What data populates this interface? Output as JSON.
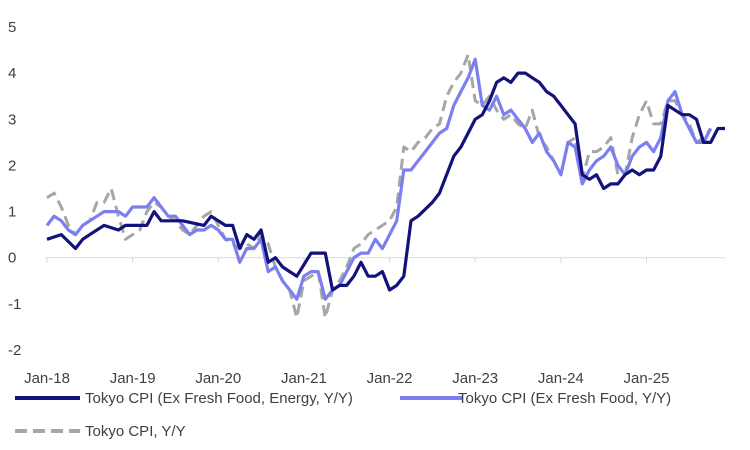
{
  "chart_data": {
    "type": "line",
    "x_ticks": [
      "Jan-18",
      "Jan-19",
      "Jan-20",
      "Jan-21",
      "Jan-22",
      "Jan-23",
      "Jan-24",
      "Jan-25"
    ],
    "y_ticks": [
      5,
      4,
      3,
      2,
      1,
      0,
      -1,
      -2
    ],
    "ylim": [
      -2,
      5
    ],
    "xlim": [
      "2018-01",
      "2025-12"
    ],
    "grid": false,
    "legend_position": "bottom",
    "series": [
      {
        "name": "Tokyo CPI (Ex Fresh Food, Energy, Y/Y)",
        "color": "#12127a",
        "dash": "solid",
        "x": [
          "2018-01",
          "2018-03",
          "2018-05",
          "2018-06",
          "2018-07",
          "2018-09",
          "2018-11",
          "2018-12",
          "2019-03",
          "2019-04",
          "2019-05",
          "2019-06",
          "2019-08",
          "2019-11",
          "2019-12",
          "2020-02",
          "2020-03",
          "2020-04",
          "2020-05",
          "2020-06",
          "2020-07",
          "2020-08",
          "2020-09",
          "2020-10",
          "2020-11",
          "2020-12",
          "2021-02",
          "2021-03",
          "2021-04",
          "2021-05",
          "2021-06",
          "2021-07",
          "2021-08",
          "2021-09",
          "2021-10",
          "2021-11",
          "2021-12",
          "2022-01",
          "2022-02",
          "2022-03",
          "2022-04",
          "2022-05",
          "2022-07",
          "2022-08",
          "2022-10",
          "2022-11",
          "2022-12",
          "2023-01",
          "2023-02",
          "2023-03",
          "2023-04",
          "2023-05",
          "2023-06",
          "2023-07",
          "2023-08",
          "2023-09",
          "2023-10",
          "2023-11",
          "2023-12",
          "2024-01",
          "2024-02",
          "2024-03",
          "2024-04",
          "2024-05",
          "2024-06",
          "2024-07",
          "2024-08",
          "2024-09",
          "2024-10",
          "2024-11",
          "2024-12",
          "2025-01",
          "2025-02",
          "2025-03",
          "2025-04",
          "2025-05",
          "2025-06",
          "2025-07",
          "2025-08",
          "2025-09",
          "2025-10",
          "2025-11",
          "2025-12"
        ],
        "y": [
          0.4,
          0.5,
          0.2,
          0.4,
          0.5,
          0.7,
          0.6,
          0.7,
          0.7,
          1.0,
          0.8,
          0.8,
          0.8,
          0.7,
          0.9,
          0.7,
          0.7,
          0.2,
          0.5,
          0.4,
          0.6,
          -0.1,
          0.0,
          -0.2,
          -0.3,
          -0.4,
          0.1,
          0.1,
          0.1,
          -0.7,
          -0.6,
          -0.6,
          -0.4,
          -0.1,
          -0.4,
          -0.4,
          -0.3,
          -0.7,
          -0.6,
          -0.4,
          0.8,
          0.9,
          1.2,
          1.4,
          2.2,
          2.4,
          2.7,
          3.0,
          3.1,
          3.4,
          3.8,
          3.9,
          3.8,
          4.0,
          4.0,
          3.9,
          3.8,
          3.6,
          3.5,
          3.3,
          3.1,
          2.9,
          1.8,
          1.7,
          1.8,
          1.5,
          1.6,
          1.6,
          1.8,
          1.9,
          1.8,
          1.9,
          1.9,
          2.2,
          3.3,
          3.2,
          3.1,
          3.1,
          3.0,
          2.5,
          2.5,
          2.8,
          2.8
        ]
      },
      {
        "name": "Tokyo CPI (Ex Fresh Food, Y/Y)",
        "color": "#7b7ff0",
        "dash": "solid",
        "x": [
          "2018-01",
          "2018-02",
          "2018-03",
          "2018-04",
          "2018-05",
          "2018-06",
          "2018-07",
          "2018-08",
          "2018-09",
          "2018-10",
          "2018-11",
          "2018-12",
          "2019-01",
          "2019-02",
          "2019-03",
          "2019-04",
          "2019-05",
          "2019-06",
          "2019-07",
          "2019-08",
          "2019-09",
          "2019-10",
          "2019-11",
          "2019-12",
          "2020-01",
          "2020-02",
          "2020-03",
          "2020-04",
          "2020-05",
          "2020-06",
          "2020-07",
          "2020-08",
          "2020-09",
          "2020-10",
          "2020-11",
          "2020-12",
          "2021-01",
          "2021-02",
          "2021-03",
          "2021-04",
          "2021-05",
          "2021-06",
          "2021-07",
          "2021-08",
          "2021-09",
          "2021-10",
          "2021-11",
          "2021-12",
          "2022-01",
          "2022-02",
          "2022-03",
          "2022-04",
          "2022-05",
          "2022-06",
          "2022-07",
          "2022-08",
          "2022-09",
          "2022-10",
          "2022-11",
          "2022-12",
          "2023-01",
          "2023-02",
          "2023-03",
          "2023-04",
          "2023-05",
          "2023-06",
          "2023-07",
          "2023-08",
          "2023-09",
          "2023-10",
          "2023-11",
          "2023-12",
          "2024-01",
          "2024-02",
          "2024-03",
          "2024-04",
          "2024-05",
          "2024-06",
          "2024-07",
          "2024-08",
          "2024-09",
          "2024-10",
          "2024-11",
          "2024-12",
          "2025-01",
          "2025-02",
          "2025-03",
          "2025-04",
          "2025-05",
          "2025-06",
          "2025-07",
          "2025-08",
          "2025-09",
          "2025-10"
        ],
        "y": [
          0.7,
          0.9,
          0.8,
          0.6,
          0.5,
          0.7,
          0.8,
          0.9,
          1.0,
          1.0,
          1.0,
          0.9,
          1.1,
          1.1,
          1.1,
          1.3,
          1.1,
          0.9,
          0.9,
          0.7,
          0.5,
          0.6,
          0.6,
          0.7,
          0.6,
          0.4,
          0.4,
          -0.1,
          0.2,
          0.2,
          0.4,
          -0.3,
          -0.2,
          -0.5,
          -0.7,
          -0.9,
          -0.4,
          -0.3,
          -0.3,
          -0.9,
          -0.7,
          -0.6,
          -0.3,
          0.0,
          0.1,
          0.1,
          0.4,
          0.2,
          0.5,
          0.8,
          1.9,
          1.9,
          2.1,
          2.3,
          2.5,
          2.7,
          2.8,
          3.3,
          3.6,
          3.9,
          4.3,
          3.3,
          3.2,
          3.5,
          3.1,
          3.2,
          3.0,
          2.8,
          2.5,
          2.7,
          2.3,
          2.1,
          1.8,
          2.5,
          2.4,
          1.6,
          1.9,
          2.1,
          2.2,
          2.4,
          2.0,
          1.8,
          2.2,
          2.4,
          2.5,
          2.3,
          2.6,
          3.4,
          3.6,
          3.1,
          2.8,
          2.5,
          2.5,
          2.8
        ]
      },
      {
        "name": "Tokyo CPI, Y/Y",
        "color": "#a6a6a6",
        "dash": "dashed",
        "x": [
          "2018-01",
          "2018-02",
          "2018-03",
          "2018-04",
          "2018-05",
          "2018-06",
          "2018-07",
          "2018-08",
          "2018-09",
          "2018-10",
          "2018-11",
          "2018-12",
          "2019-01",
          "2019-02",
          "2019-03",
          "2019-04",
          "2019-05",
          "2019-06",
          "2019-07",
          "2019-08",
          "2019-09",
          "2019-10",
          "2019-11",
          "2019-12",
          "2020-01",
          "2020-02",
          "2020-03",
          "2020-04",
          "2020-05",
          "2020-06",
          "2020-07",
          "2020-08",
          "2020-09",
          "2020-10",
          "2020-11",
          "2020-12",
          "2021-01",
          "2021-02",
          "2021-03",
          "2021-04",
          "2021-05",
          "2021-06",
          "2021-07",
          "2021-08",
          "2021-09",
          "2021-10",
          "2021-11",
          "2021-12",
          "2022-01",
          "2022-02",
          "2022-03",
          "2022-04",
          "2022-05",
          "2022-06",
          "2022-07",
          "2022-08",
          "2022-09",
          "2022-10",
          "2022-11",
          "2022-12",
          "2023-01",
          "2023-02",
          "2023-03",
          "2023-04",
          "2023-05",
          "2023-06",
          "2023-07",
          "2023-08",
          "2023-09",
          "2023-10",
          "2023-11",
          "2023-12",
          "2024-01",
          "2024-02",
          "2024-03",
          "2024-04",
          "2024-05",
          "2024-06",
          "2024-07",
          "2024-08",
          "2024-09",
          "2024-10",
          "2024-11",
          "2024-12",
          "2025-01",
          "2025-02",
          "2025-03",
          "2025-04",
          "2025-05",
          "2025-06",
          "2025-07",
          "2025-08",
          "2025-09",
          "2025-10"
        ],
        "y": [
          1.3,
          1.4,
          1.1,
          0.7,
          0.5,
          0.7,
          0.8,
          1.2,
          1.2,
          1.5,
          0.9,
          0.4,
          0.5,
          0.6,
          1.0,
          1.2,
          1.1,
          0.9,
          0.8,
          0.6,
          0.5,
          0.7,
          0.9,
          1.0,
          0.7,
          0.4,
          0.3,
          0.2,
          0.3,
          0.2,
          0.5,
          0.3,
          -0.2,
          -0.5,
          -0.7,
          -1.3,
          -0.5,
          -0.4,
          -0.3,
          -1.3,
          -0.7,
          -0.5,
          -0.2,
          0.2,
          0.3,
          0.5,
          0.6,
          0.7,
          0.8,
          1.1,
          2.4,
          2.3,
          2.5,
          2.6,
          2.8,
          2.9,
          3.5,
          3.8,
          4.0,
          4.4,
          3.4,
          3.3,
          3.5,
          3.2,
          3.0,
          3.1,
          2.9,
          2.8,
          3.2,
          2.6,
          2.4,
          2.1,
          1.8,
          2.5,
          2.6,
          1.7,
          2.3,
          2.3,
          2.4,
          2.6,
          1.8,
          1.8,
          2.6,
          3.1,
          3.4,
          2.9,
          2.9,
          3.4,
          3.4,
          3.1,
          2.9,
          2.5,
          2.6,
          2.8
        ]
      }
    ]
  }
}
